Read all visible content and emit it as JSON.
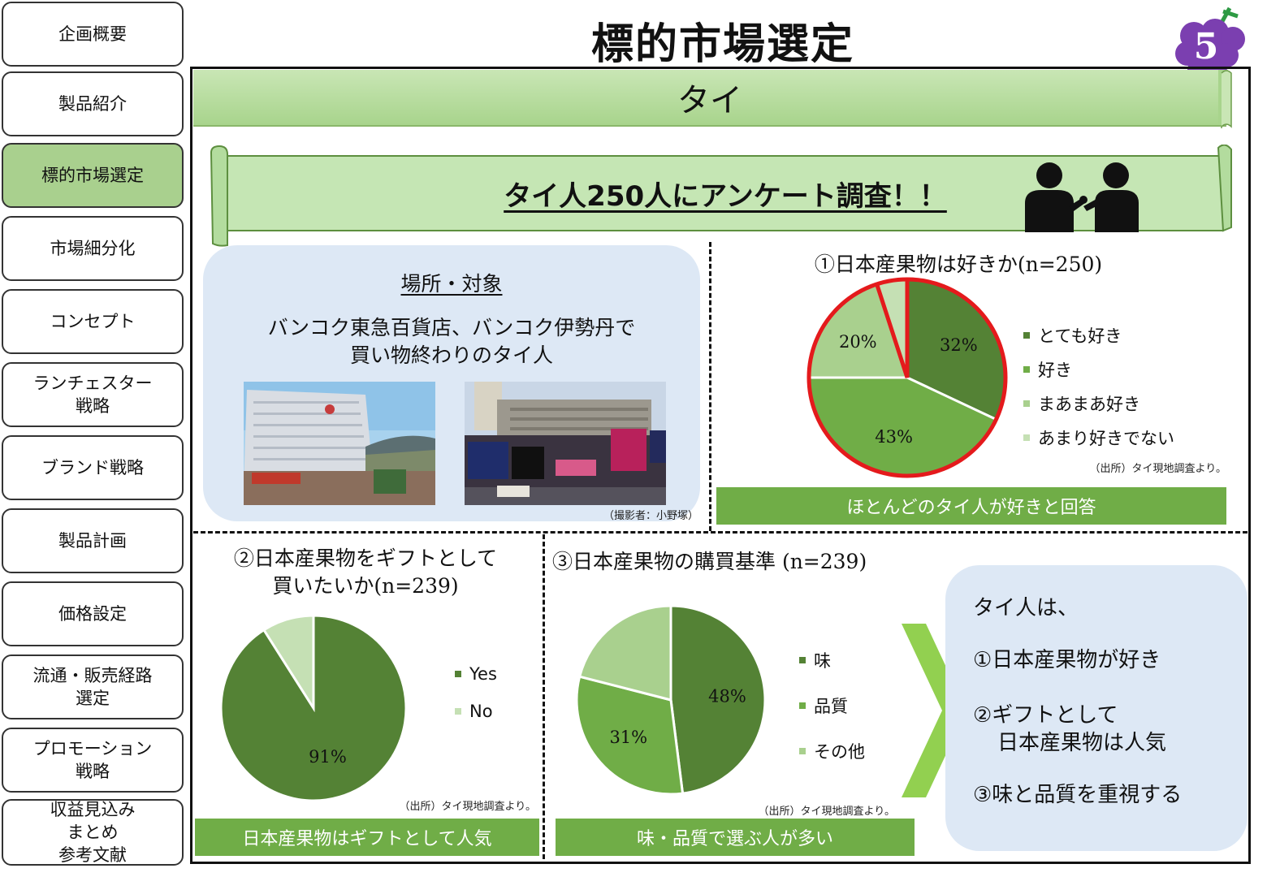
{
  "page": {
    "title": "標的市場選定",
    "page_number": "5"
  },
  "sidebar": {
    "items": [
      {
        "label": "企画概要"
      },
      {
        "label": "製品紹介"
      },
      {
        "label": "標的市場選定",
        "active": true
      },
      {
        "label": "市場細分化"
      },
      {
        "label": "コンセプト"
      },
      {
        "label": "ランチェスター\n戦略"
      },
      {
        "label": "ブランド戦略"
      },
      {
        "label": "製品計画"
      },
      {
        "label": "価格設定"
      },
      {
        "label": "流通・販売経路\n選定"
      },
      {
        "label": "プロモーション\n戦略"
      },
      {
        "label": "収益見込み\nまとめ\n参考文献"
      }
    ]
  },
  "banner": {
    "title": "タイ"
  },
  "survey": {
    "headline": "タイ人250人にアンケート調査！！",
    "icon": "interview-icon"
  },
  "location": {
    "heading": "場所・対象",
    "line1": "バンコク東急百貨店、バンコク伊勢丹で",
    "line2": "買い物終わりのタイ人",
    "photo_credit": "（撮影者：小野塚）"
  },
  "source_note": "（出所）タイ現地調査より。",
  "colors": {
    "dark_green": "#548235",
    "green": "#70ad47",
    "light_green": "#a9d08e",
    "pale_green": "#c5e0b4",
    "highlight": "#e41a1c"
  },
  "chart_data": [
    {
      "type": "pie",
      "title": "①日本産果物は好きか(n=250)",
      "categories": [
        "とても好き",
        "好き",
        "まあまあ好き",
        "あまり好きでない"
      ],
      "values": [
        32,
        43,
        20,
        5
      ],
      "data_labels": [
        "32%",
        "43%",
        "20%",
        ""
      ],
      "legend": "right",
      "summary": "ほとんどのタイ人が好きと回答"
    },
    {
      "type": "pie",
      "title_line1": "②日本産果物をギフトとして",
      "title_line2": "買いたいか(n=239)",
      "categories": [
        "Yes",
        "No"
      ],
      "values": [
        91,
        9
      ],
      "data_labels": [
        "91%",
        ""
      ],
      "legend": "right",
      "summary": "日本産果物はギフトとして人気"
    },
    {
      "type": "pie",
      "title": "③日本産果物の購買基準 (n=239)",
      "categories": [
        "味",
        "品質",
        "その他"
      ],
      "values": [
        48,
        31,
        21
      ],
      "data_labels": [
        "48%",
        "31%",
        ""
      ],
      "legend": "right",
      "summary": "味・品質で選ぶ人が多い"
    }
  ],
  "conclusion": {
    "intro": "タイ人は、",
    "point1": "①日本産果物が好き",
    "point2a": "②ギフトとして",
    "point2b": "日本産果物は人気",
    "point3": "③味と品質を重視する"
  }
}
